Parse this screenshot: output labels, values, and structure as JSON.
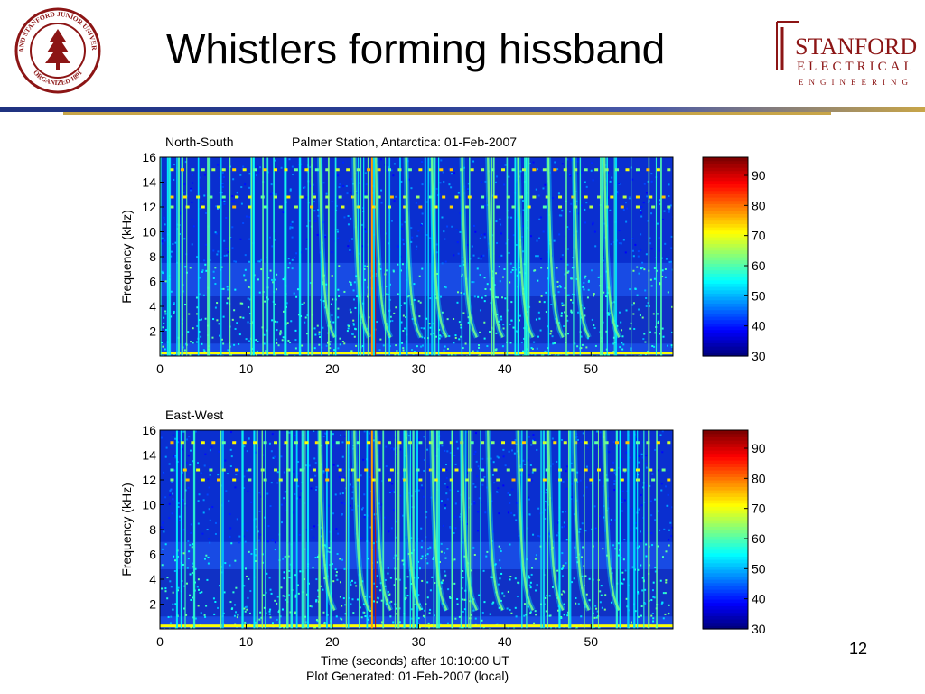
{
  "slide": {
    "title": "Whistlers forming hissband",
    "page_number": "12",
    "logo_text": {
      "seal_ring": "LELAND STANFORD JUNIOR UNIVERSITY",
      "seal_bottom": "ORGANIZED 1891",
      "ee_line1": "STANFORD",
      "ee_line2": "ELECTRICAL",
      "ee_line3": "ENGINEERING"
    },
    "colors": {
      "header_blue": "#1f3280",
      "header_gold": "#c8a548",
      "seal_red": "#8c1515",
      "spectrogram_base": "#0a2fd0"
    }
  },
  "chart_data": [
    {
      "type": "heatmap",
      "panel_label": "North-South",
      "title": "Palmer Station, Antarctica: 01-Feb-2007",
      "ylabel": "Frequency (kHz)",
      "xlabel": "",
      "xlim": [
        0,
        59.5
      ],
      "ylim": [
        0,
        16
      ],
      "x_ticks": [
        0,
        10,
        20,
        30,
        40,
        50
      ],
      "y_ticks": [
        2,
        4,
        6,
        8,
        10,
        12,
        14,
        16
      ],
      "colorbar": {
        "ticks": [
          30,
          40,
          50,
          60,
          70,
          80,
          90
        ],
        "range": [
          30,
          96
        ]
      },
      "whistler_times_s": [
        18.5,
        22.5,
        25,
        28.5,
        31.5,
        35,
        38,
        41.5,
        45,
        48,
        51.5
      ],
      "hissband_upper_khz": 7.5,
      "tone_lines_khz": [
        15,
        12.8,
        12
      ]
    },
    {
      "type": "heatmap",
      "panel_label": "East-West",
      "title": "",
      "ylabel": "Frequency (kHz)",
      "xlabel": "Time (seconds) after 10:10:00 UT",
      "footer": "Plot Generated: 01-Feb-2007 (local)",
      "xlim": [
        0,
        59.5
      ],
      "ylim": [
        0,
        16
      ],
      "x_ticks": [
        0,
        10,
        20,
        30,
        40,
        50
      ],
      "y_ticks": [
        2,
        4,
        6,
        8,
        10,
        12,
        14,
        16
      ],
      "colorbar": {
        "ticks": [
          30,
          40,
          50,
          60,
          70,
          80,
          90
        ],
        "range": [
          30,
          96
        ]
      },
      "whistler_times_s": [
        18.5,
        22.5,
        25,
        28.5,
        31.5,
        35,
        38,
        41.5,
        45,
        48,
        51.5
      ],
      "hissband_upper_khz": 7,
      "tone_lines_khz": [
        15,
        12.8,
        12
      ]
    }
  ]
}
